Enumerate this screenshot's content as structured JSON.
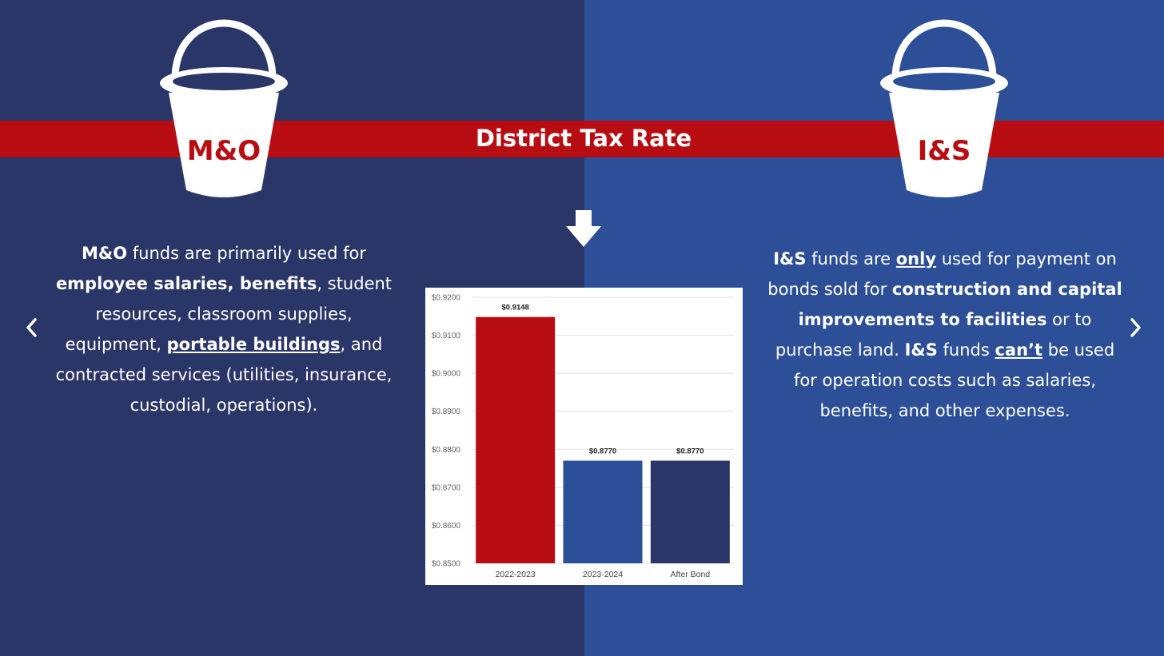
{
  "slide": {
    "title": "District Tax Rate",
    "left_bucket_label": "M&O",
    "right_bucket_label": "I&S",
    "colors": {
      "left_bg": "#2b3668",
      "right_bg": "#2d4f98",
      "band": "#b70d12",
      "text": "#ffffff"
    }
  },
  "left_text": {
    "p1": "M&O",
    "p2": " funds are primarily used for ",
    "p3": "employee salaries, benefits",
    "p4": ", student resources, classroom supplies, equipment, ",
    "p5": "portable buildings",
    "p6": ", and contracted services (utilities, insurance, custodial, operations)."
  },
  "right_text": {
    "p1": "I&S",
    "p2": " funds are ",
    "p3": "only",
    "p4": " used for payment on bonds sold for ",
    "p5": "construction and capital improvements to facilities",
    "p6": " or to purchase land.  ",
    "p7": "I&S",
    "p8": " funds ",
    "p9": "can’t",
    "p10": " be used for operation costs such as salaries, benefits, and other expenses."
  },
  "navigation": {
    "prev_icon": "chevron-left-icon",
    "next_icon": "chevron-right-icon"
  },
  "chart_data": {
    "type": "bar",
    "categories": [
      "2022-2023",
      "2023-2024",
      "After Bond"
    ],
    "values": [
      0.9148,
      0.877,
      0.877
    ],
    "data_labels": [
      "$0.9148",
      "$0.8770",
      "$0.8770"
    ],
    "bar_colors": [
      "#b70d12",
      "#2d4f98",
      "#2b3668"
    ],
    "ylim": [
      0.85,
      0.92
    ],
    "yticks": [
      0.85,
      0.86,
      0.87,
      0.88,
      0.89,
      0.9,
      0.91,
      0.92
    ],
    "ytick_labels": [
      "$0.8500",
      "$0.8600",
      "$0.8700",
      "$0.8800",
      "$0.8900",
      "$0.9000",
      "$0.9100",
      "$0.9200"
    ],
    "grid": true,
    "title": "",
    "xlabel": "",
    "ylabel": ""
  }
}
